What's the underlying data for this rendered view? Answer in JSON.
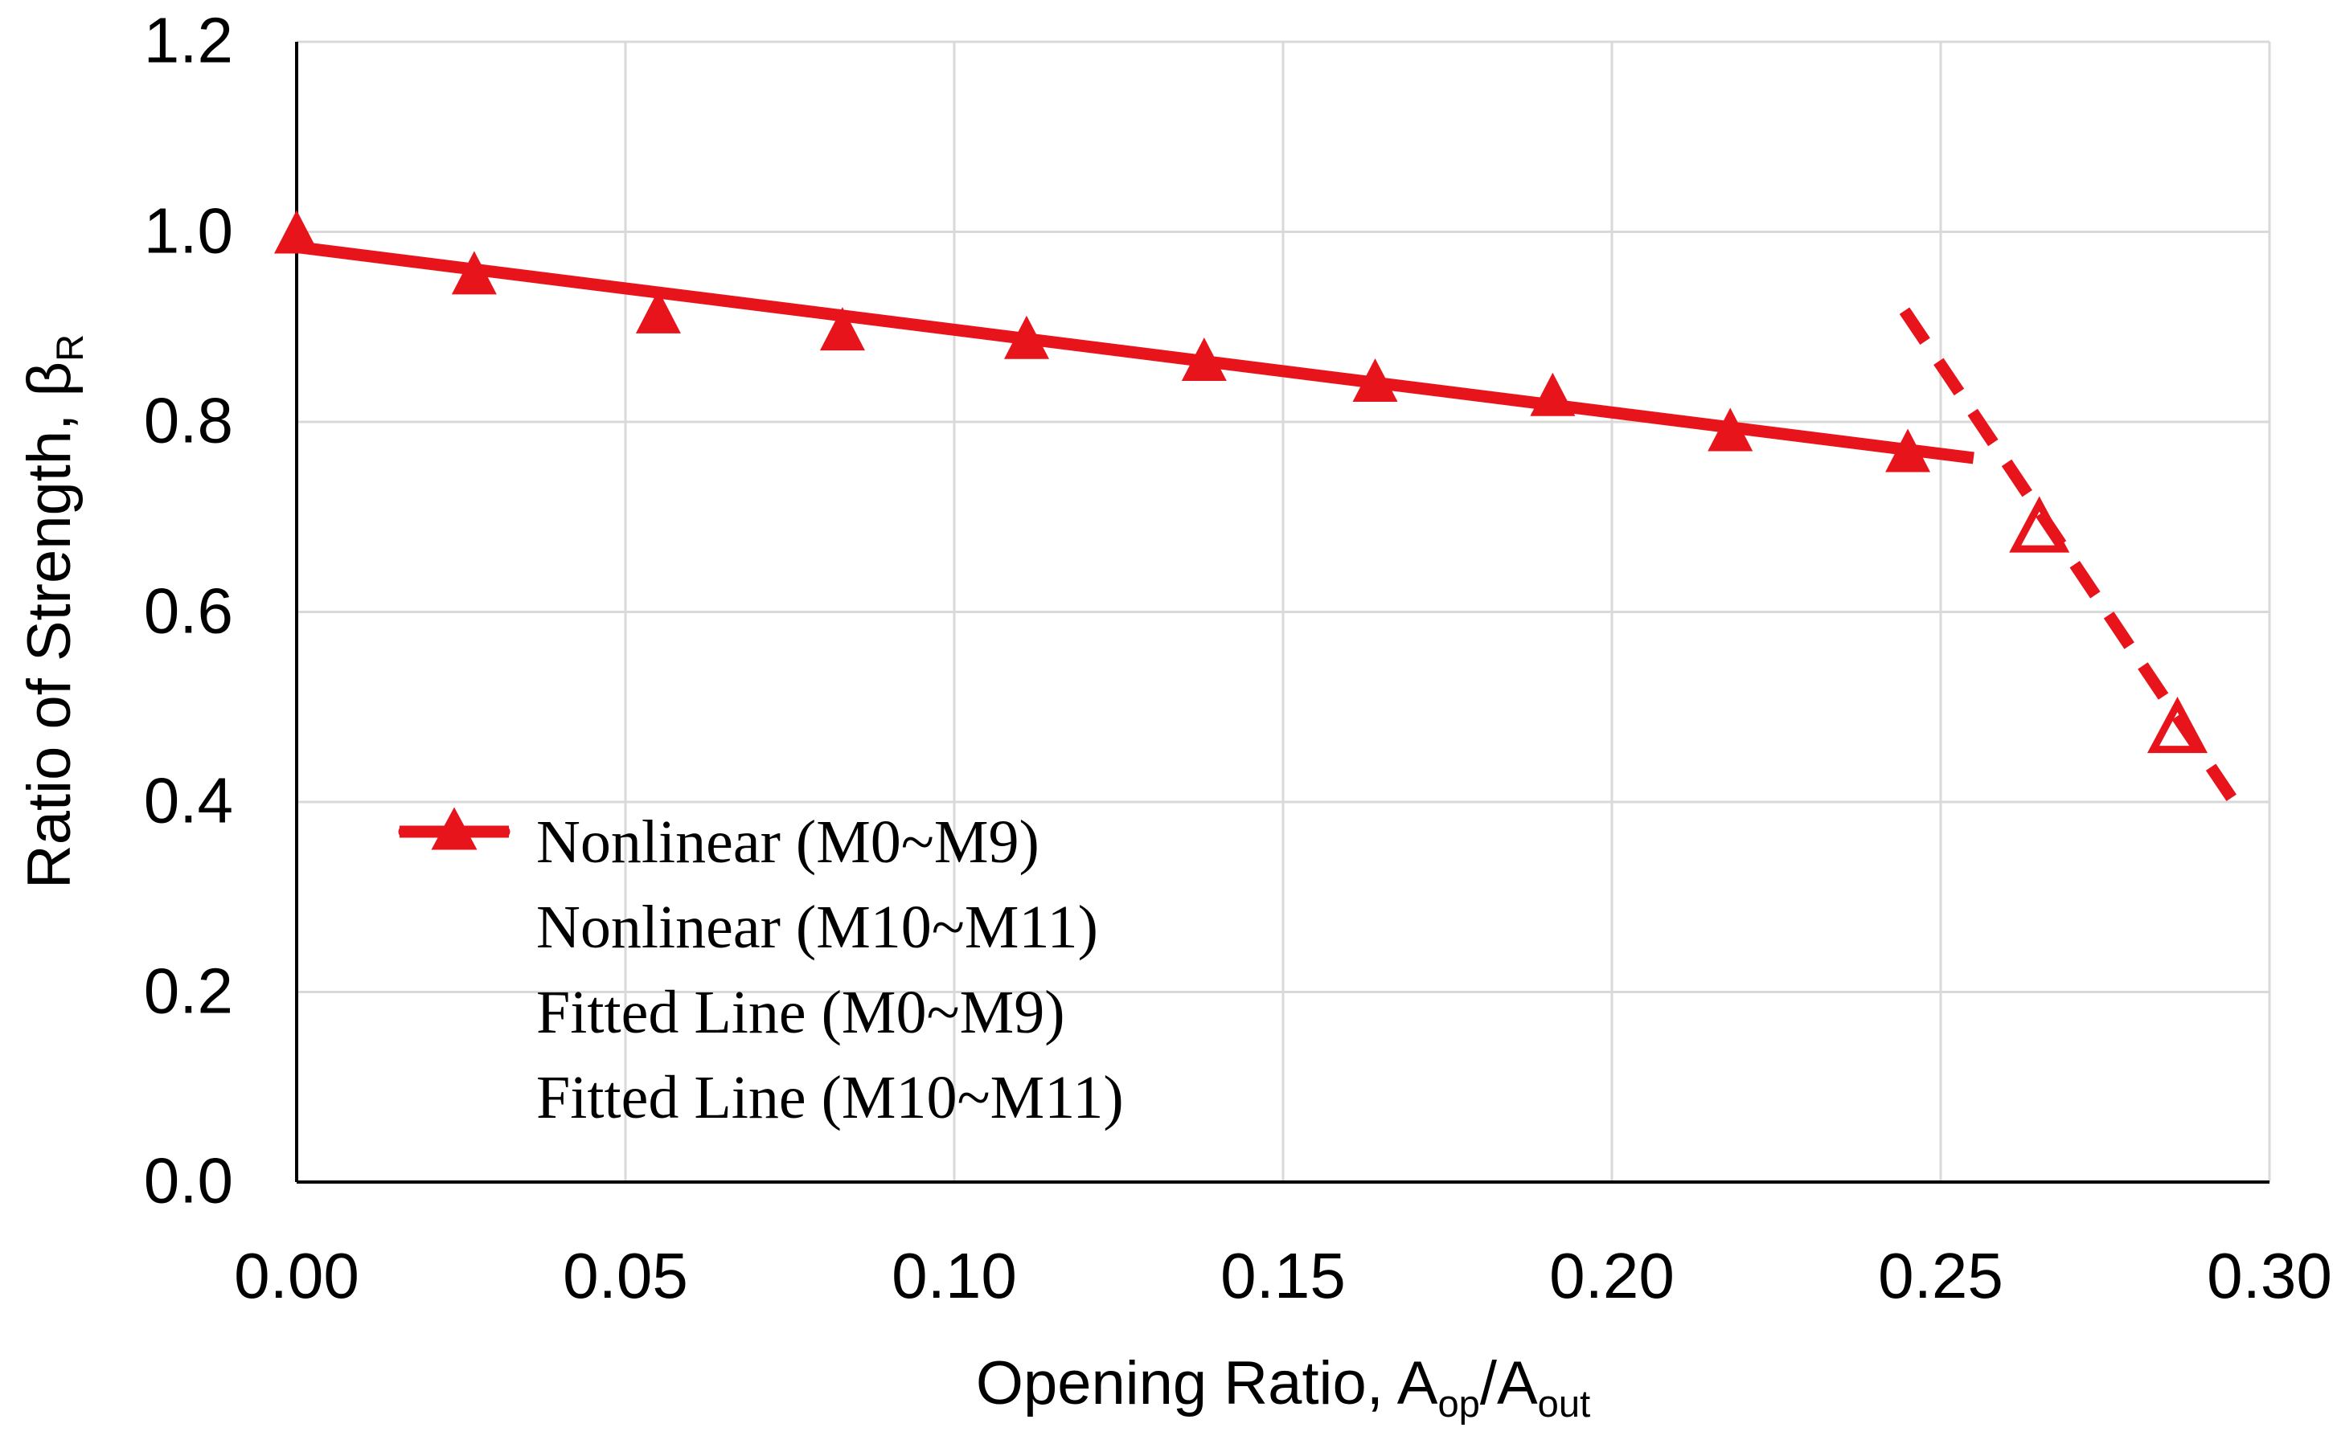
{
  "colors": {
    "series_red": "#e8141c",
    "gridline": "#d9d9d9",
    "axis_line": "#000000",
    "text": "#000000"
  },
  "chart_data": {
    "type": "scatter",
    "title": "",
    "xlabel_text": "Opening Ratio, A_op/A_out",
    "ylabel_text": "Ratio of Strength, B_R",
    "xlabel": {
      "p1": "Opening Ratio, A",
      "s1": "op",
      "p2": "/A",
      "s2": "out"
    },
    "ylabel": {
      "p1": "Ratio of Strength, β",
      "s1": "R"
    },
    "xlim": [
      0.0,
      0.3
    ],
    "ylim": [
      0.0,
      1.2
    ],
    "grid": true,
    "legend_position": "inside-lower-left",
    "xticks": {
      "values": [
        0.0,
        0.05,
        0.1,
        0.15,
        0.2,
        0.25,
        0.3
      ],
      "labels": [
        "0.00",
        "0.05",
        "0.10",
        "0.15",
        "0.20",
        "0.25",
        "0.30"
      ]
    },
    "yticks": {
      "values": [
        0.0,
        0.2,
        0.4,
        0.6,
        0.8,
        1.0,
        1.2
      ],
      "labels": [
        "0.0",
        "0.2",
        "0.4",
        "0.6",
        "0.8",
        "1.0",
        "1.2"
      ]
    },
    "series": [
      {
        "name": "Nonlinear (M0~M9)",
        "type": "scatter",
        "marker": "triangle-filled",
        "color": "#e8141c",
        "points": [
          [
            0.0,
            1.0
          ],
          [
            0.027,
            0.957
          ],
          [
            0.055,
            0.916
          ],
          [
            0.083,
            0.898
          ],
          [
            0.111,
            0.889
          ],
          [
            0.138,
            0.866
          ],
          [
            0.164,
            0.844
          ],
          [
            0.191,
            0.829
          ],
          [
            0.218,
            0.792
          ],
          [
            0.245,
            0.77
          ]
        ]
      },
      {
        "name": "Nonlinear (M10~M11)",
        "type": "scatter",
        "marker": "triangle-open",
        "color": "#e8141c",
        "points": [
          [
            0.265,
            0.69
          ],
          [
            0.286,
            0.479
          ]
        ]
      },
      {
        "name": "Fitted Line (M0~M9)",
        "type": "line",
        "style": "solid",
        "color": "#e8141c",
        "points": [
          [
            0.0,
            0.984
          ],
          [
            0.255,
            0.762
          ]
        ]
      },
      {
        "name": "Fitted Line (M10~M11)",
        "type": "line",
        "style": "dashed",
        "color": "#e8141c",
        "points": [
          [
            0.2445,
            0.917
          ],
          [
            0.296,
            0.386
          ]
        ]
      }
    ]
  }
}
